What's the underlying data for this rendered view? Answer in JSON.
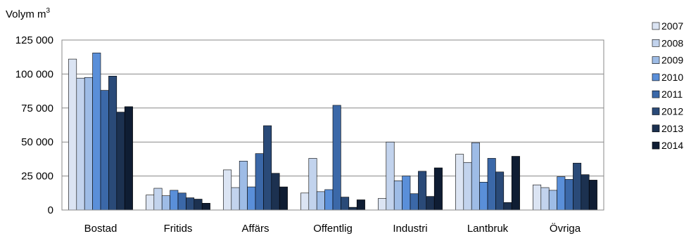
{
  "chart_data": {
    "type": "bar",
    "ylabel": "Volym m",
    "ylabel_superscript": "3",
    "categories": [
      "Bostad",
      "Fritids",
      "Affärs",
      "Offentlig",
      "Industri",
      "Lantbruk",
      "Övriga"
    ],
    "ylim": [
      0,
      125000
    ],
    "yticks": [
      0,
      25000,
      50000,
      75000,
      100000,
      125000
    ],
    "ytick_labels": [
      "0",
      "25 000",
      "50 000",
      "75 000",
      "100 000",
      "125 000"
    ],
    "grid": true,
    "legend_position": "right",
    "series": [
      {
        "name": "2007",
        "color": "#dbe4f3",
        "values": [
          111000,
          11000,
          29500,
          12500,
          8500,
          41000,
          18500
        ]
      },
      {
        "name": "2008",
        "color": "#c2d3ed",
        "values": [
          97000,
          16000,
          16500,
          38000,
          50000,
          35000,
          16500
        ]
      },
      {
        "name": "2009",
        "color": "#9ebce6",
        "values": [
          97500,
          10500,
          36000,
          13500,
          21500,
          49500,
          14500
        ]
      },
      {
        "name": "2010",
        "color": "#5a8fd9",
        "values": [
          115500,
          14500,
          17000,
          15000,
          25000,
          20500,
          24500
        ]
      },
      {
        "name": "2011",
        "color": "#3b68a8",
        "values": [
          88000,
          12500,
          41500,
          77000,
          12000,
          38000,
          22500
        ]
      },
      {
        "name": "2012",
        "color": "#2a4a78",
        "values": [
          98500,
          9000,
          62000,
          9500,
          28500,
          28000,
          34500
        ]
      },
      {
        "name": "2013",
        "color": "#1c3150",
        "values": [
          72000,
          8000,
          27000,
          2000,
          10000,
          5500,
          26000
        ]
      },
      {
        "name": "2014",
        "color": "#0f1d33",
        "values": [
          76000,
          5000,
          17000,
          7500,
          31000,
          39500,
          22000
        ]
      }
    ]
  }
}
